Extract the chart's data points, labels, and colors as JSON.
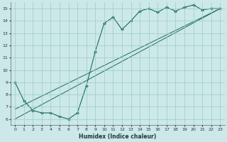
{
  "xlabel": "Humidex (Indice chaleur)",
  "bg_color": "#cce8e8",
  "grid_color": "#99cccc",
  "line_color": "#1a6b5a",
  "xlim": [
    -0.5,
    23.5
  ],
  "ylim": [
    5.5,
    15.5
  ],
  "xticks": [
    0,
    1,
    2,
    3,
    4,
    5,
    6,
    7,
    8,
    9,
    10,
    11,
    12,
    13,
    14,
    15,
    16,
    17,
    18,
    19,
    20,
    21,
    22,
    23
  ],
  "yticks": [
    6,
    7,
    8,
    9,
    10,
    11,
    12,
    13,
    14,
    15
  ],
  "line1_x": [
    0,
    1,
    2,
    3,
    4,
    5,
    6,
    7,
    8,
    9,
    10,
    11,
    12,
    13,
    14,
    15,
    16,
    17,
    18,
    19,
    20,
    21,
    22,
    23
  ],
  "line1_y": [
    9.0,
    7.5,
    6.7,
    6.5,
    6.5,
    6.2,
    6.0,
    6.5,
    8.7,
    11.5,
    13.8,
    14.3,
    13.3,
    14.0,
    14.8,
    15.0,
    14.7,
    15.1,
    14.8,
    15.1,
    15.3,
    14.9,
    15.0,
    15.0
  ],
  "line2_x": [
    0,
    23
  ],
  "line2_y": [
    6.0,
    15.0
  ],
  "line3_x": [
    0,
    23
  ],
  "line3_y": [
    6.8,
    15.0
  ]
}
